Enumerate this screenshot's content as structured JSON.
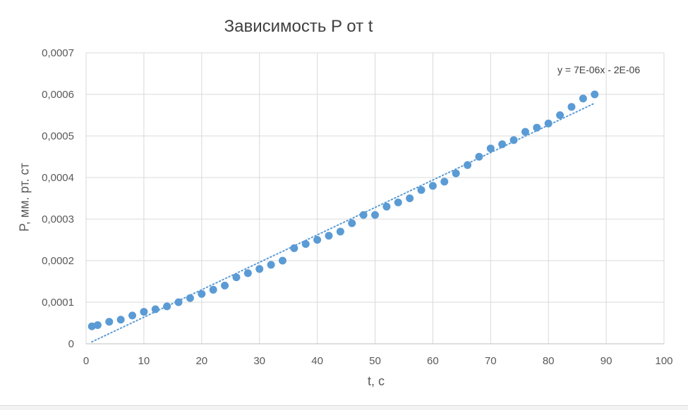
{
  "chart_data": {
    "type": "scatter",
    "title": "Зависимость P от t",
    "xlabel": "t, с",
    "ylabel": "P, мм. рт. ст",
    "xlim": [
      0,
      100
    ],
    "ylim": [
      0,
      0.0007
    ],
    "x_ticks": [
      "0",
      "10",
      "20",
      "30",
      "40",
      "50",
      "60",
      "70",
      "80",
      "90",
      "100"
    ],
    "y_ticks": [
      "0",
      "0,0001",
      "0,0002",
      "0,0003",
      "0,0004",
      "0,0005",
      "0,0006",
      "0,0007"
    ],
    "grid": true,
    "series": [
      {
        "color": "#5b9bd5",
        "x": [
          1,
          2,
          4,
          6,
          8,
          10,
          12,
          14,
          16,
          18,
          20,
          22,
          24,
          26,
          28,
          30,
          32,
          34,
          36,
          38,
          40,
          42,
          44,
          46,
          48,
          50,
          52,
          54,
          56,
          58,
          60,
          62,
          64,
          66,
          68,
          70,
          72,
          74,
          76,
          78,
          80,
          82,
          84,
          86,
          88
        ],
        "y": [
          4.2e-05,
          4.5e-05,
          5.3e-05,
          5.8e-05,
          6.8e-05,
          7.7e-05,
          8.3e-05,
          9e-05,
          0.0001,
          0.00011,
          0.00012,
          0.00013,
          0.00014,
          0.00016,
          0.00017,
          0.00018,
          0.00019,
          0.0002,
          0.00023,
          0.00024,
          0.00025,
          0.00026,
          0.00027,
          0.00029,
          0.00031,
          0.00031,
          0.00033,
          0.00034,
          0.00035,
          0.00037,
          0.00038,
          0.00039,
          0.00041,
          0.00043,
          0.00045,
          0.00047,
          0.00048,
          0.00049,
          0.00051,
          0.00052,
          0.00053,
          0.00055,
          0.00057,
          0.00059,
          0.0006
        ]
      }
    ],
    "trendline": {
      "type": "linear",
      "slope": 6.6e-06,
      "intercept": -2e-06,
      "x_range": [
        1,
        88
      ],
      "label": "y = 7E-06x - 2E-06",
      "color": "#5b9bd5"
    }
  }
}
